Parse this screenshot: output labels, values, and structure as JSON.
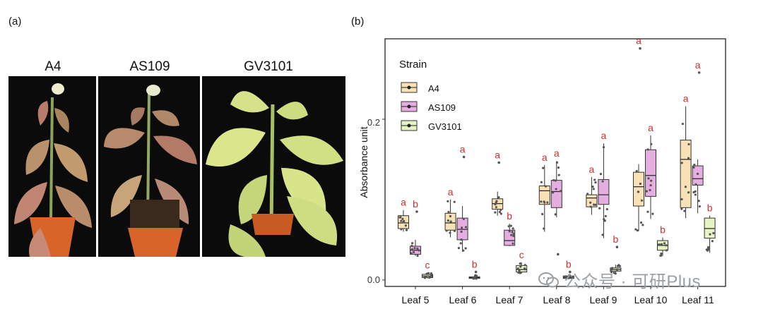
{
  "panels": {
    "a": "(a)",
    "b": "(b)"
  },
  "photos": [
    {
      "label": "A4"
    },
    {
      "label": "AS109"
    },
    {
      "label": "GV3101"
    }
  ],
  "chart_data": {
    "type": "box",
    "ylabel": "Absorbance unit",
    "yticks": [
      "0.0",
      "0.2"
    ],
    "ylim": [
      -0.008,
      0.3
    ],
    "grid": false,
    "legend": {
      "title": "Strain",
      "position": "top-left",
      "entries": [
        "A4",
        "AS109",
        "GV3101"
      ]
    },
    "colors": {
      "A4": "#f7e1b5",
      "AS109": "#e6aee0",
      "GV3101": "#e6f3c2",
      "letters": "#d32f2f",
      "points": "#555555"
    },
    "categories": [
      "Leaf 5",
      "Leaf 6",
      "Leaf 7",
      "Leaf 8",
      "Leaf 9",
      "Leaf 10",
      "Leaf 11"
    ],
    "series": [
      {
        "name": "A4",
        "boxes": [
          {
            "min": 0.06,
            "q1": 0.064,
            "median": 0.071,
            "q3": 0.08,
            "max": 0.087
          },
          {
            "min": 0.053,
            "q1": 0.062,
            "median": 0.071,
            "q3": 0.083,
            "max": 0.1
          },
          {
            "min": 0.08,
            "q1": 0.088,
            "median": 0.095,
            "q3": 0.101,
            "max": 0.11
          },
          {
            "min": 0.06,
            "q1": 0.094,
            "median": 0.111,
            "q3": 0.117,
            "max": 0.143
          },
          {
            "min": 0.081,
            "q1": 0.091,
            "median": 0.102,
            "q3": 0.106,
            "max": 0.128
          },
          {
            "min": 0.061,
            "q1": 0.092,
            "median": 0.116,
            "q3": 0.134,
            "max": 0.144
          },
          {
            "min": 0.077,
            "q1": 0.09,
            "median": 0.15,
            "q3": 0.174,
            "max": 0.216
          }
        ],
        "letters": [
          "a",
          "a",
          "a",
          "a",
          "a",
          "a",
          "a"
        ],
        "outliers": [
          [],
          [],
          [
            0.146
          ],
          [],
          [],
          [
            0.288
          ],
          []
        ]
      },
      {
        "name": "AS109",
        "boxes": [
          {
            "min": 0.03,
            "q1": 0.032,
            "median": 0.037,
            "q3": 0.042,
            "max": 0.05
          },
          {
            "min": 0.035,
            "q1": 0.05,
            "median": 0.063,
            "q3": 0.077,
            "max": 0.092
          },
          {
            "min": 0.042,
            "q1": 0.043,
            "median": 0.049,
            "q3": 0.062,
            "max": 0.07
          },
          {
            "min": 0.078,
            "q1": 0.09,
            "median": 0.11,
            "q3": 0.124,
            "max": 0.148
          },
          {
            "min": 0.052,
            "q1": 0.094,
            "median": 0.106,
            "q3": 0.125,
            "max": 0.17
          },
          {
            "min": 0.076,
            "q1": 0.104,
            "median": 0.13,
            "q3": 0.162,
            "max": 0.18
          },
          {
            "min": 0.083,
            "q1": 0.118,
            "median": 0.126,
            "q3": 0.142,
            "max": 0.15
          }
        ],
        "letters": [
          "b",
          "a",
          "b",
          "a",
          "a",
          "a",
          "a"
        ],
        "outliers": [
          [
            0.085
          ],
          [
            0.153
          ],
          [],
          [
            0.032
          ],
          [],
          [],
          [
            0.258
          ]
        ]
      },
      {
        "name": "GV3101",
        "boxes": [
          {
            "min": 0.002,
            "q1": 0.003,
            "median": 0.005,
            "q3": 0.007,
            "max": 0.009
          },
          {
            "min": 0.001,
            "q1": 0.002,
            "median": 0.003,
            "q3": 0.004,
            "max": 0.006
          },
          {
            "min": 0.008,
            "q1": 0.01,
            "median": 0.013,
            "q3": 0.018,
            "max": 0.022
          },
          {
            "min": 0.001,
            "q1": 0.002,
            "median": 0.003,
            "q3": 0.005,
            "max": 0.007
          },
          {
            "min": 0.008,
            "q1": 0.011,
            "median": 0.013,
            "q3": 0.015,
            "max": 0.019
          },
          {
            "min": 0.03,
            "q1": 0.037,
            "median": 0.043,
            "q3": 0.049,
            "max": 0.053
          },
          {
            "min": 0.034,
            "q1": 0.052,
            "median": 0.064,
            "q3": 0.077,
            "max": 0.08
          }
        ],
        "letters": [
          "c",
          "b",
          "c",
          "b",
          "b",
          "b",
          "b"
        ],
        "outliers": [
          [],
          [
            0.01
          ],
          [],
          [
            0.01
          ],
          [
            0.041
          ],
          [],
          []
        ]
      }
    ]
  },
  "watermark": {
    "text": "公众号 · 可研Plus",
    "icon": "wechat-icon"
  }
}
